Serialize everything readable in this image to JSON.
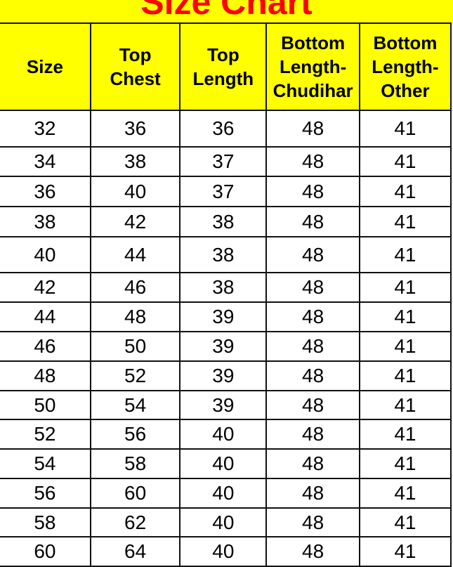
{
  "title": "Size Chart",
  "colors": {
    "header_bg": "#ffff00",
    "title_color": "#ff0000"
  },
  "table": {
    "headers": [
      "Size",
      "Top\nChest",
      "Top\nLength",
      "Bottom\nLength-\nChudihar",
      "Bottom\nLength-\nOther"
    ],
    "rows": [
      [
        "32",
        "36",
        "36",
        "48",
        "41"
      ],
      [
        "34",
        "38",
        "37",
        "48",
        "41"
      ],
      [
        "36",
        "40",
        "37",
        "48",
        "41"
      ],
      [
        "38",
        "42",
        "38",
        "48",
        "41"
      ],
      [
        "40",
        "44",
        "38",
        "48",
        "41"
      ],
      [
        "42",
        "46",
        "38",
        "48",
        "41"
      ],
      [
        "44",
        "48",
        "39",
        "48",
        "41"
      ],
      [
        "46",
        "50",
        "39",
        "48",
        "41"
      ],
      [
        "48",
        "52",
        "39",
        "48",
        "41"
      ],
      [
        "50",
        "54",
        "39",
        "48",
        "41"
      ],
      [
        "52",
        "56",
        "40",
        "48",
        "41"
      ],
      [
        "54",
        "58",
        "40",
        "48",
        "41"
      ],
      [
        "56",
        "60",
        "40",
        "48",
        "41"
      ],
      [
        "58",
        "62",
        "40",
        "48",
        "41"
      ],
      [
        "60",
        "64",
        "40",
        "48",
        "41"
      ]
    ]
  }
}
